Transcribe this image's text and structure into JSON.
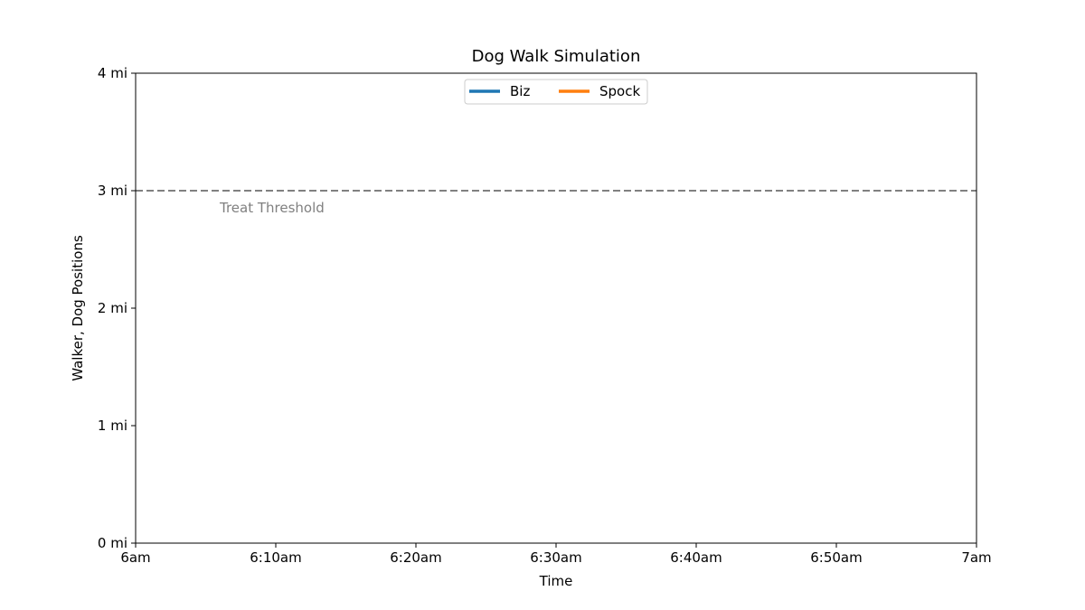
{
  "chart_data": {
    "type": "line",
    "title": "Dog Walk Simulation",
    "xlabel": "Time",
    "ylabel": "Walker, Dog Positions",
    "x_ticks": [
      "6am",
      "6:10am",
      "6:20am",
      "6:30am",
      "6:40am",
      "6:50am",
      "7am"
    ],
    "y_ticks": [
      "0 mi",
      "1 mi",
      "2 mi",
      "3 mi",
      "4 mi"
    ],
    "xlim": [
      "6am",
      "7am"
    ],
    "ylim": [
      0,
      4
    ],
    "grid": false,
    "legend_position": "top-center",
    "series": [
      {
        "name": "Biz",
        "color": "#1f77b4",
        "points": []
      },
      {
        "name": "Spock",
        "color": "#ff7f0e",
        "points": []
      }
    ],
    "reference_lines": [
      {
        "y": 3,
        "label": "Treat Threshold",
        "color": "#808080",
        "style": "dashed"
      }
    ]
  }
}
